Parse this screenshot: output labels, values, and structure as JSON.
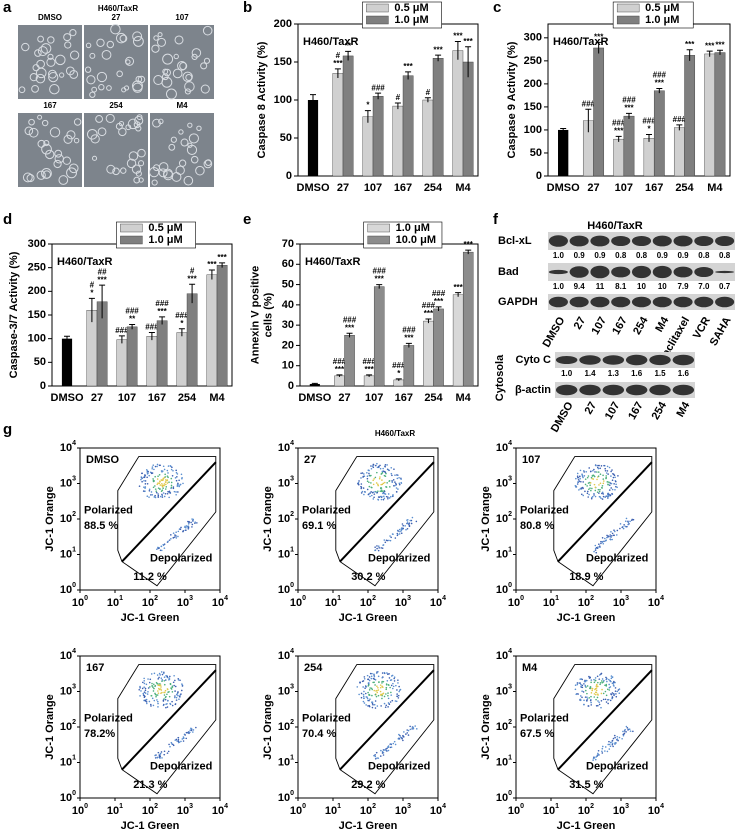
{
  "panel_labels": [
    "a",
    "b",
    "c",
    "d",
    "e",
    "f",
    "g"
  ],
  "micro": {
    "title": "H460/TaxR",
    "labels": [
      "DMSO",
      "27",
      "107",
      "167",
      "254",
      "M4"
    ]
  },
  "chart_data": [
    {
      "type": "bar",
      "title": "H460/TaxR",
      "y_label": [
        "Caspase 8 Activity (%)"
      ],
      "categories": [
        "DMSO",
        "27",
        "107",
        "167",
        "254",
        "M4"
      ],
      "control": {
        "value": 100,
        "error": 7,
        "color": "#000000"
      },
      "series": [
        {
          "name": "0.5 μM",
          "color": "#d0d0d0",
          "values": [
            null,
            135,
            78,
            92,
            100,
            165
          ],
          "errors": [
            null,
            6,
            8,
            4,
            3,
            12
          ],
          "annotations": [
            [],
            [
              "#",
              "***"
            ],
            [
              "*"
            ],
            [
              "#"
            ],
            [
              "#"
            ],
            [
              "***"
            ]
          ]
        },
        {
          "name": "1.0 μM",
          "color": "#7f7f7f",
          "values": [
            null,
            158,
            105,
            132,
            155,
            150
          ],
          "errors": [
            null,
            6,
            4,
            5,
            4,
            20
          ],
          "annotations": [
            [],
            [
              "**"
            ],
            [
              "###"
            ],
            [
              "***"
            ],
            [
              "***"
            ],
            [
              "***"
            ]
          ]
        }
      ],
      "ylim": [
        0,
        200
      ],
      "yticks": [
        0,
        50,
        100,
        150,
        200
      ]
    },
    {
      "type": "bar",
      "title": "H460/TaxR",
      "y_label": [
        "Caspase 9 Activity (%)"
      ],
      "categories": [
        "DMSO",
        "27",
        "107",
        "167",
        "254",
        "M4"
      ],
      "control": {
        "value": 100,
        "error": 3,
        "color": "#000000"
      },
      "series": [
        {
          "name": "0.5 μM",
          "color": "#d0d0d0",
          "values": [
            null,
            120,
            80,
            82,
            105,
            265
          ],
          "errors": [
            null,
            25,
            6,
            8,
            6,
            6
          ],
          "annotations": [
            [],
            [
              "###"
            ],
            [
              "###",
              "***"
            ],
            [
              "###",
              "*"
            ],
            [
              "###"
            ],
            [
              "***"
            ]
          ]
        },
        {
          "name": "1.0 μM",
          "color": "#7f7f7f",
          "values": [
            null,
            278,
            130,
            185,
            262,
            268
          ],
          "errors": [
            null,
            12,
            6,
            5,
            12,
            5
          ],
          "annotations": [
            [],
            [
              "***"
            ],
            [
              "###",
              "***"
            ],
            [
              "###",
              "***"
            ],
            [
              "***"
            ],
            [
              "***"
            ]
          ]
        }
      ],
      "ylim": [
        0,
        330
      ],
      "yticks": [
        0,
        50,
        100,
        150,
        200,
        250,
        300
      ]
    },
    {
      "type": "bar",
      "title": "H460/TaxR",
      "y_label": [
        "Caspase-3/7 Activity (%)"
      ],
      "categories": [
        "DMSO",
        "27",
        "107",
        "167",
        "254",
        "M4"
      ],
      "control": {
        "value": 100,
        "error": 5,
        "color": "#000000"
      },
      "series": [
        {
          "name": "0.5 μM",
          "color": "#d0d0d0",
          "values": [
            null,
            160,
            98,
            105,
            113,
            235
          ],
          "errors": [
            null,
            25,
            8,
            8,
            8,
            10
          ],
          "annotations": [
            [],
            [
              "#",
              "*"
            ],
            [
              "###"
            ],
            [
              "###"
            ],
            [
              "###",
              "*"
            ],
            [
              "***"
            ]
          ]
        },
        {
          "name": "1.0 μM",
          "color": "#7f7f7f",
          "values": [
            null,
            178,
            125,
            138,
            195,
            255
          ],
          "errors": [
            null,
            35,
            5,
            8,
            20,
            5
          ],
          "annotations": [
            [],
            [
              "##",
              "***"
            ],
            [
              "###",
              "**"
            ],
            [
              "###",
              "***"
            ],
            [
              "#",
              "***"
            ],
            [
              "***"
            ]
          ]
        }
      ],
      "ylim": [
        0,
        300
      ],
      "yticks": [
        0,
        50,
        100,
        150,
        200,
        250,
        300
      ]
    },
    {
      "type": "bar",
      "title": "H460/TaxR",
      "y_label": [
        "Annexin V positive",
        "cells (%)"
      ],
      "categories": [
        "DMSO",
        "27",
        "107",
        "167",
        "254",
        "M4"
      ],
      "control": {
        "value": 1,
        "error": 0.3,
        "color": "#000000"
      },
      "series": [
        {
          "name": "1.0 μM",
          "color": "#d8d8d8",
          "values": [
            null,
            5,
            5,
            3,
            32,
            45
          ],
          "errors": [
            null,
            0.5,
            0.5,
            0.5,
            1,
            1
          ],
          "annotations": [
            [],
            [
              "###",
              "***"
            ],
            [
              "###",
              "***"
            ],
            [
              "###",
              "*"
            ],
            [
              "###",
              "***"
            ],
            [
              "***"
            ]
          ]
        },
        {
          "name": "10.0 μM",
          "color": "#8c8c8c",
          "values": [
            null,
            25,
            49,
            20,
            38,
            66
          ],
          "errors": [
            null,
            1,
            1,
            1,
            1,
            1
          ],
          "annotations": [
            [],
            [
              "###",
              "***"
            ],
            [
              "###",
              "***"
            ],
            [
              "###",
              "***"
            ],
            [
              "###",
              "***"
            ],
            [
              "***"
            ]
          ]
        }
      ],
      "ylim": [
        0,
        70
      ],
      "yticks": [
        0,
        10,
        20,
        30,
        40,
        50,
        60,
        70
      ]
    }
  ],
  "blot": {
    "title": "H460/TaxR",
    "rows": [
      {
        "label": "Bcl-xL",
        "values": [
          "1.0",
          "0.9",
          "0.9",
          "0.8",
          "0.8",
          "0.9",
          "0.9",
          "0.8",
          "0.8"
        ]
      },
      {
        "label": "Bad",
        "values": [
          "1.0",
          "9.4",
          "11",
          "8.1",
          "10",
          "10",
          "7.9",
          "7.0",
          "0.7"
        ]
      },
      {
        "label": "GAPDH"
      }
    ],
    "lanes": [
      "DMSO",
      "27",
      "107",
      "167",
      "254",
      "M4",
      "Paclitaxel",
      "VCR",
      "SAHA"
    ],
    "lower": {
      "group": "Cytosola",
      "rows": [
        {
          "label": "Cyto C",
          "values": [
            "1.0",
            "1.4",
            "1.3",
            "1.6",
            "1.5",
            "1.6"
          ]
        },
        {
          "label": "β-actin"
        }
      ],
      "lanes": [
        "DMSO",
        "27",
        "107",
        "167",
        "254",
        "M4"
      ]
    }
  },
  "flow": {
    "title": "H460/TaxR",
    "x_label": "JC-1 Green",
    "y_label": "JC-1 Orange",
    "tick_base": "10",
    "tick_exps": [
      "0",
      "1",
      "2",
      "3",
      "4"
    ],
    "polarized_label": "Polarized",
    "depolarized_label": "Depolarized",
    "plots": [
      {
        "name": "DMSO",
        "polarized": "88.5 %",
        "depolarized": "11.2 %"
      },
      {
        "name": "27",
        "polarized": "69.1 %",
        "depolarized": "30.2 %"
      },
      {
        "name": "107",
        "polarized": "80.8 %",
        "depolarized": "18.9 %"
      },
      {
        "name": "167",
        "polarized": "78.2%",
        "depolarized": "21.3 %"
      },
      {
        "name": "254",
        "polarized": "70.4 %",
        "depolarized": "29.2 %"
      },
      {
        "name": "M4",
        "polarized": "67.5 %",
        "depolarized": "31.5 %"
      }
    ]
  }
}
